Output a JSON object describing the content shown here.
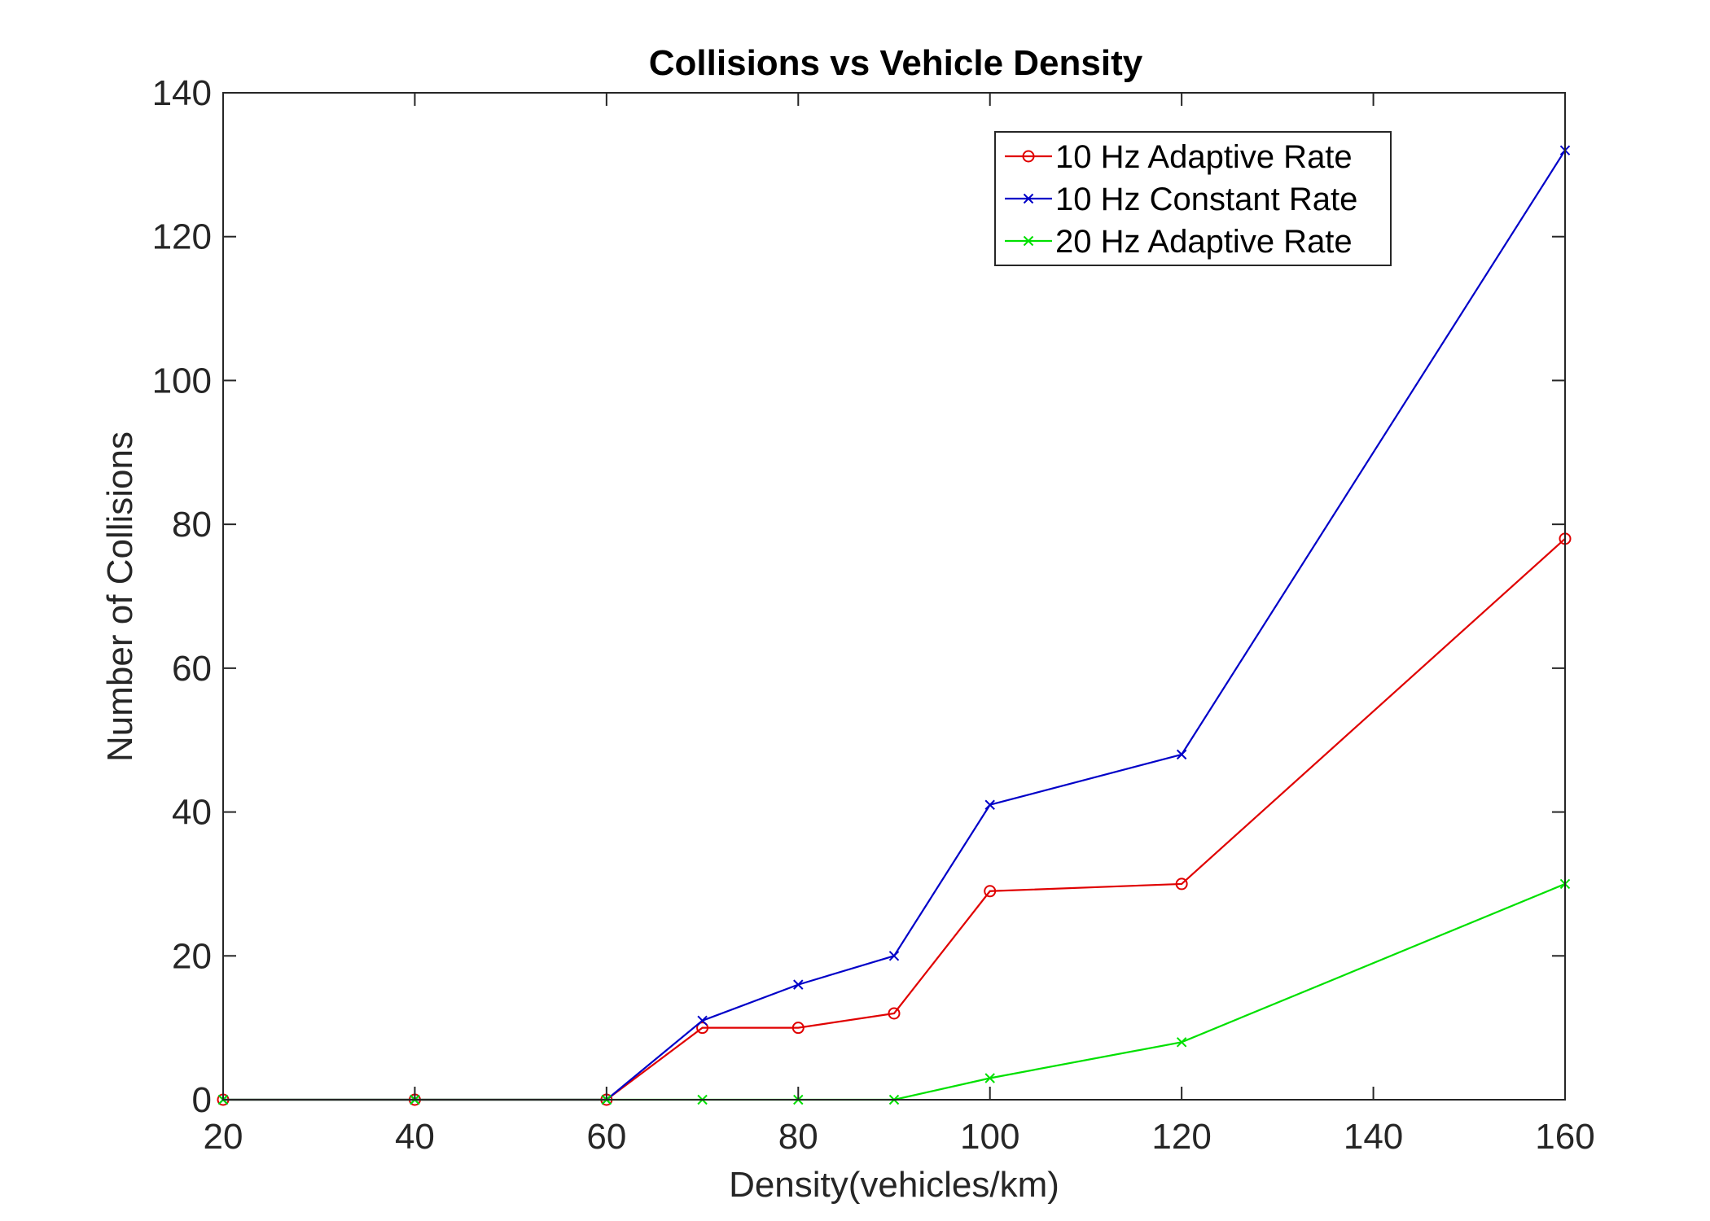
{
  "chart_data": {
    "type": "line",
    "title": "Collisions vs Vehicle Density",
    "xlabel": "Density(vehicles/km)",
    "ylabel": "Number of Collisions",
    "xlim": [
      20,
      160
    ],
    "ylim": [
      0,
      140
    ],
    "xticks": [
      "20",
      "40",
      "60",
      "80",
      "100",
      "120",
      "140",
      "160"
    ],
    "yticks": [
      "0",
      "20",
      "40",
      "60",
      "80",
      "100",
      "120",
      "140"
    ],
    "grid": false,
    "legend_position": "top-right",
    "series": [
      {
        "name": "10 Hz Adaptive Rate",
        "color": "#e00000",
        "marker": "circle",
        "x": [
          20,
          40,
          60,
          70,
          80,
          90,
          100,
          120,
          160
        ],
        "y": [
          0,
          0,
          0,
          10,
          10,
          12,
          29,
          30,
          78
        ]
      },
      {
        "name": "10 Hz Constant Rate",
        "color": "#0000c8",
        "marker": "x",
        "x": [
          20,
          40,
          60,
          70,
          80,
          90,
          100,
          120,
          160
        ],
        "y": [
          0,
          0,
          0,
          11,
          16,
          20,
          41,
          48,
          132
        ]
      },
      {
        "name": "20 Hz Adaptive Rate",
        "color": "#00e000",
        "marker": "x",
        "x": [
          20,
          40,
          60,
          70,
          80,
          90,
          100,
          120,
          160
        ],
        "y": [
          0,
          0,
          0,
          0,
          0,
          0,
          3,
          8,
          30
        ]
      }
    ]
  }
}
